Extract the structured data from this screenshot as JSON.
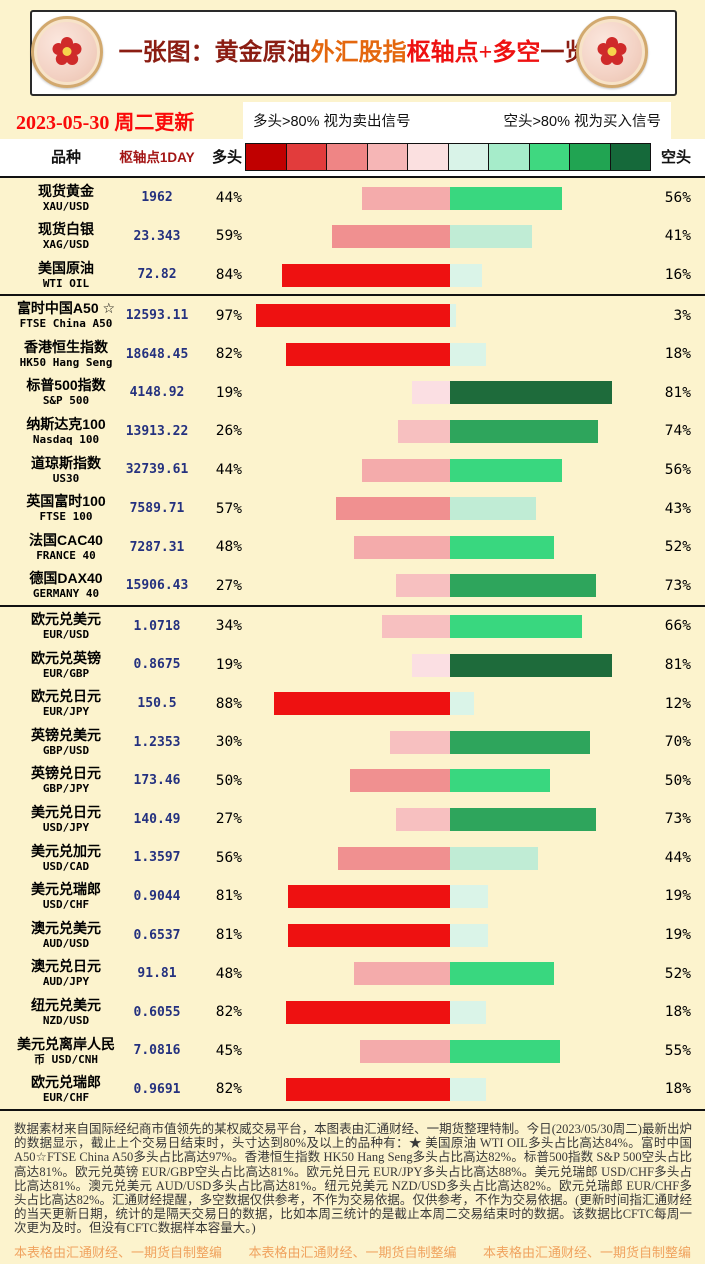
{
  "header": {
    "title_segments": [
      {
        "text": "一张图：黄金原油",
        "color": "#8b1d12"
      },
      {
        "text": "外汇股指",
        "color": "#e4670e"
      },
      {
        "text": "枢轴点+多空",
        "color": "#ee1111"
      },
      {
        "text": "一览",
        "color": "#8b1d12"
      }
    ],
    "date": "2023-05-30 周二更新"
  },
  "legend": {
    "long_note": "多头>80% 视为卖出信号",
    "short_note": "空头>80% 视为买入信号",
    "scale_colors": [
      "#c00000",
      "#e23c3c",
      "#ef8585",
      "#f6b6b6",
      "#fbe0e0",
      "#d9f3e8",
      "#a6ecca",
      "#3fd880",
      "#21a452",
      "#15693a"
    ]
  },
  "table": {
    "columns": {
      "variety": "品种",
      "pivot": "枢轴点1DAY",
      "long": "多头",
      "short": "空头"
    },
    "rows": [
      {
        "line1": "现货黄金",
        "line2": "XAU/USD",
        "pivot": "1962",
        "long": 44,
        "short": 56
      },
      {
        "line1": "现货白银",
        "line2": "XAG/USD",
        "pivot": "23.343",
        "long": 59,
        "short": 41
      },
      {
        "line1": "美国原油",
        "line2": "WTI OIL",
        "pivot": "72.82",
        "long": 84,
        "short": 16,
        "group_end": true
      },
      {
        "line1": "富时中国A50 ☆",
        "line2": "FTSE China A50",
        "pivot": "12593.11",
        "long": 97,
        "short": 3
      },
      {
        "line1": "香港恒生指数",
        "line2": "HK50 Hang Seng",
        "pivot": "18648.45",
        "long": 82,
        "short": 18
      },
      {
        "line1": "标普500指数",
        "line2": "S&P 500",
        "pivot": "4148.92",
        "long": 19,
        "short": 81
      },
      {
        "line1": "纳斯达克100",
        "line2": "Nasdaq 100",
        "pivot": "13913.22",
        "long": 26,
        "short": 74
      },
      {
        "line1": "道琼斯指数",
        "line2": "US30",
        "pivot": "32739.61",
        "long": 44,
        "short": 56
      },
      {
        "line1": "英国富时100",
        "line2": "FTSE 100",
        "pivot": "7589.71",
        "long": 57,
        "short": 43
      },
      {
        "line1": "法国CAC40",
        "line2": "FRANCE 40",
        "pivot": "7287.31",
        "long": 48,
        "short": 52
      },
      {
        "line1": "德国DAX40",
        "line2": "GERMANY 40",
        "pivot": "15906.43",
        "long": 27,
        "short": 73,
        "group_end": true
      },
      {
        "line1": "欧元兑美元",
        "line2": "EUR/USD",
        "pivot": "1.0718",
        "long": 34,
        "short": 66
      },
      {
        "line1": "欧元兑英镑",
        "line2": "EUR/GBP",
        "pivot": "0.8675",
        "long": 19,
        "short": 81
      },
      {
        "line1": "欧元兑日元",
        "line2": "EUR/JPY",
        "pivot": "150.5",
        "long": 88,
        "short": 12
      },
      {
        "line1": "英镑兑美元",
        "line2": "GBP/USD",
        "pivot": "1.2353",
        "long": 30,
        "short": 70
      },
      {
        "line1": "英镑兑日元",
        "line2": "GBP/JPY",
        "pivot": "173.46",
        "long": 50,
        "short": 50
      },
      {
        "line1": "美元兑日元",
        "line2": "USD/JPY",
        "pivot": "140.49",
        "long": 27,
        "short": 73
      },
      {
        "line1": "美元兑加元",
        "line2": "USD/CAD",
        "pivot": "1.3597",
        "long": 56,
        "short": 44
      },
      {
        "line1": "美元兑瑞郎",
        "line2": "USD/CHF",
        "pivot": "0.9044",
        "long": 81,
        "short": 19
      },
      {
        "line1": "澳元兑美元",
        "line2": "AUD/USD",
        "pivot": "0.6537",
        "long": 81,
        "short": 19
      },
      {
        "line1": "澳元兑日元",
        "line2": "AUD/JPY",
        "pivot": "91.81",
        "long": 48,
        "short": 52
      },
      {
        "line1": "纽元兑美元",
        "line2": "NZD/USD",
        "pivot": "0.6055",
        "long": 82,
        "short": 18
      },
      {
        "line1": "美元兑离岸人民",
        "line2": "币 USD/CNH",
        "pivot": "7.0816",
        "long": 45,
        "short": 55
      },
      {
        "line1": "欧元兑瑞郎",
        "line2": "EUR/CHF",
        "pivot": "0.9691",
        "long": 82,
        "short": 18
      }
    ]
  },
  "bar_colors": {
    "bull": [
      {
        "min": 80,
        "color": "#ee1111"
      },
      {
        "min": 50,
        "color": "#f09090"
      },
      {
        "min": 40,
        "color": "#f4abab"
      },
      {
        "min": 25,
        "color": "#f7c0c0"
      },
      {
        "min": 0,
        "color": "#fbdfe3"
      }
    ],
    "bear": [
      {
        "min": 80,
        "color": "#1e6b3b"
      },
      {
        "min": 68,
        "color": "#2ea55c"
      },
      {
        "min": 45,
        "color": "#39d77f"
      },
      {
        "min": 25,
        "color": "#c0ecd5"
      },
      {
        "min": 0,
        "color": "#daf4e8"
      }
    ]
  },
  "footnote": "数据素材来自国际经纪商市值领先的某权威交易平台，本图表由汇通财经、一期货整理特制。今日(2023/05/30周二)最新出炉的数据显示，截止上个交易日结束时，头寸达到80%及以上的品种有：★ 美国原油 WTI OIL多头占比高达84%。富时中国A50☆FTSE China A50多头占比高达97%。香港恒生指数 HK50 Hang Seng多头占比高达82%。标普500指数 S&P 500空头占比高达81%。欧元兑英镑 EUR/GBP空头占比高达81%。欧元兑日元 EUR/JPY多头占比高达88%。美元兑瑞郎 USD/CHF多头占比高达81%。澳元兑美元 AUD/USD多头占比高达81%。纽元兑美元 NZD/USD多头占比高达82%。欧元兑瑞郎 EUR/CHF多头占比高达82%。汇通财经提醒，多空数据仅供参考，不作为交易依据。仅供参考，不作为交易依据。(更新时间指汇通财经的当天更新日期，统计的是隔天交易日的数据，比如本周三统计的是截止本周二交易结束时的数据。该数据比CFTC每周一次更为及时。但没有CFTC数据样本容量大。)",
  "footer": {
    "credit": "本表格由汇通财经、一期货自制整编"
  },
  "chart_data": {
    "type": "bar",
    "orientation": "horizontal-diverging",
    "title": "一张图：黄金原油外汇股指枢轴点+多空一览",
    "updated": "2023-05-30 周二更新",
    "legend": [
      "多头>80% 视为卖出信号",
      "空头>80% 视为买入信号"
    ],
    "categories": [
      "现货黄金 XAU/USD",
      "现货白银 XAG/USD",
      "美国原油 WTI OIL",
      "富时中国A50 FTSE China A50",
      "香港恒生指数 HK50 Hang Seng",
      "标普500指数 S&P 500",
      "纳斯达克100 Nasdaq 100",
      "道琼斯指数 US30",
      "英国富时100 FTSE 100",
      "法国CAC40 FRANCE 40",
      "德国DAX40 GERMANY 40",
      "欧元兑美元 EUR/USD",
      "欧元兑英镑 EUR/GBP",
      "欧元兑日元 EUR/JPY",
      "英镑兑美元 GBP/USD",
      "英镑兑日元 GBP/JPY",
      "美元兑日元 USD/JPY",
      "美元兑加元 USD/CAD",
      "美元兑瑞郎 USD/CHF",
      "澳元兑美元 AUD/USD",
      "澳元兑日元 AUD/JPY",
      "纽元兑美元 NZD/USD",
      "美元兑离岸人民币 USD/CNH",
      "欧元兑瑞郎 EUR/CHF"
    ],
    "pivot_points": [
      1962,
      23.343,
      72.82,
      12593.11,
      18648.45,
      4148.92,
      13913.22,
      32739.61,
      7589.71,
      7287.31,
      15906.43,
      1.0718,
      0.8675,
      150.5,
      1.2353,
      173.46,
      140.49,
      1.3597,
      0.9044,
      0.6537,
      91.81,
      0.6055,
      7.0816,
      0.9691
    ],
    "series": [
      {
        "name": "多头",
        "unit": "%",
        "values": [
          44,
          59,
          84,
          97,
          82,
          19,
          26,
          44,
          57,
          48,
          27,
          34,
          19,
          88,
          30,
          50,
          27,
          56,
          81,
          81,
          48,
          82,
          45,
          82
        ]
      },
      {
        "name": "空头",
        "unit": "%",
        "values": [
          56,
          41,
          16,
          3,
          18,
          81,
          74,
          56,
          43,
          52,
          73,
          66,
          81,
          12,
          70,
          50,
          73,
          44,
          19,
          19,
          52,
          18,
          55,
          18
        ]
      }
    ],
    "xlim_each_side": [
      0,
      100
    ],
    "grid": false
  }
}
